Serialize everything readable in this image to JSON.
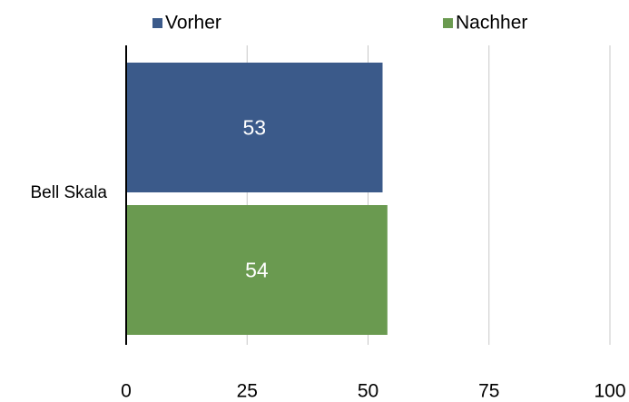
{
  "chart_data": {
    "type": "bar",
    "orientation": "horizontal",
    "categories": [
      "Bell Skala"
    ],
    "series": [
      {
        "name": "Vorher",
        "color": "#3b5a8a",
        "values": [
          53
        ]
      },
      {
        "name": "Nachher",
        "color": "#6a9a50",
        "values": [
          54
        ]
      }
    ],
    "xlim": [
      0,
      100
    ],
    "xticks": [
      0,
      25,
      50,
      75,
      100
    ],
    "grid": true,
    "legend": "top"
  }
}
